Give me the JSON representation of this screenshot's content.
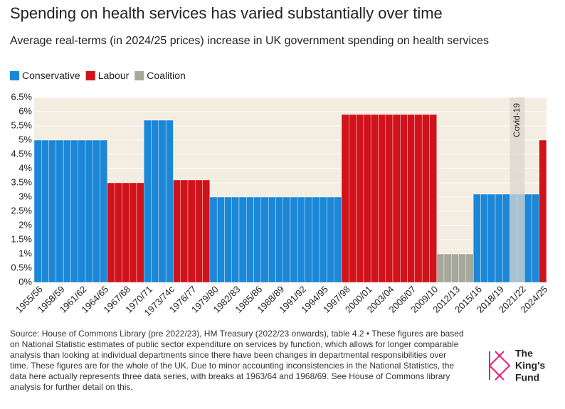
{
  "chart_data": {
    "type": "bar",
    "title": "Spending on health services has varied substantially over time",
    "subtitle": "Average real-terms (in 2024/25 prices) increase in UK government spending on health services",
    "categories": [
      "1955/56",
      null,
      null,
      "1958/59",
      null,
      null,
      "1961/62",
      null,
      null,
      "1964/65",
      null,
      null,
      "1967/68",
      null,
      null,
      "1970/71",
      null,
      null,
      "1973/74c",
      null,
      null,
      "1976/77",
      null,
      null,
      "1979/80",
      null,
      null,
      "1982/83",
      null,
      null,
      "1985/86",
      null,
      null,
      "1988/89",
      null,
      null,
      "1991/92",
      null,
      null,
      "1994/95",
      null,
      null,
      "1997/98",
      null,
      null,
      "2000/01",
      null,
      null,
      "2003/04",
      null,
      null,
      "2006/07",
      null,
      null,
      "2009/10",
      null,
      null,
      "2012/13",
      null,
      null,
      "2015/16",
      null,
      null,
      "2018/19",
      null,
      null,
      "2021/22",
      null,
      null,
      "2024/25"
    ],
    "series": [
      {
        "name": "Conservative",
        "color": "#1b87d6",
        "values": [
          5,
          5,
          5,
          5,
          5,
          5,
          5,
          5,
          5,
          5,
          null,
          null,
          null,
          null,
          null,
          5.7,
          5.7,
          5.7,
          5.7,
          null,
          null,
          null,
          null,
          null,
          3,
          3,
          3,
          3,
          3,
          3,
          3,
          3,
          3,
          3,
          3,
          3,
          3,
          3,
          3,
          3,
          3,
          3,
          null,
          null,
          null,
          null,
          null,
          null,
          null,
          null,
          null,
          null,
          null,
          null,
          null,
          null,
          null,
          null,
          null,
          null,
          3.1,
          3.1,
          3.1,
          3.1,
          3.1,
          3.1,
          3.1,
          3.1,
          3.1,
          null
        ]
      },
      {
        "name": "Labour",
        "color": "#d0121b",
        "values": [
          null,
          null,
          null,
          null,
          null,
          null,
          null,
          null,
          null,
          null,
          3.5,
          3.5,
          3.5,
          3.5,
          3.5,
          null,
          null,
          null,
          null,
          3.6,
          3.6,
          3.6,
          3.6,
          3.6,
          null,
          null,
          null,
          null,
          null,
          null,
          null,
          null,
          null,
          null,
          null,
          null,
          null,
          null,
          null,
          null,
          null,
          null,
          5.9,
          5.9,
          5.9,
          5.9,
          5.9,
          5.9,
          5.9,
          5.9,
          5.9,
          5.9,
          5.9,
          5.9,
          5.9,
          null,
          null,
          null,
          null,
          null,
          null,
          null,
          null,
          null,
          null,
          null,
          null,
          null,
          null,
          5
        ]
      },
      {
        "name": "Coalition",
        "color": "#a6a89c",
        "values": [
          null,
          null,
          null,
          null,
          null,
          null,
          null,
          null,
          null,
          null,
          null,
          null,
          null,
          null,
          null,
          null,
          null,
          null,
          null,
          null,
          null,
          null,
          null,
          null,
          null,
          null,
          null,
          null,
          null,
          null,
          null,
          null,
          null,
          null,
          null,
          null,
          null,
          null,
          null,
          null,
          null,
          null,
          null,
          null,
          null,
          null,
          null,
          null,
          null,
          null,
          null,
          null,
          null,
          null,
          null,
          1,
          1,
          1,
          1,
          1,
          null,
          null,
          null,
          null,
          null,
          null,
          null,
          null,
          null,
          null
        ]
      }
    ],
    "ylim": [
      0,
      6.5
    ],
    "yticks": [
      {
        "value": 0,
        "label": "0%"
      },
      {
        "value": 0.5,
        "label": "0.5%"
      },
      {
        "value": 1,
        "label": "1%"
      },
      {
        "value": 1.5,
        "label": "1.5%"
      },
      {
        "value": 2,
        "label": "2%"
      },
      {
        "value": 2.5,
        "label": "2.5%"
      },
      {
        "value": 3,
        "label": "3%"
      },
      {
        "value": 3.5,
        "label": "3.5%"
      },
      {
        "value": 4,
        "label": "4%"
      },
      {
        "value": 4.5,
        "label": "4.5%"
      },
      {
        "value": 5,
        "label": "5%"
      },
      {
        "value": 5.5,
        "label": "5.5%"
      },
      {
        "value": 6,
        "label": "6%"
      },
      {
        "value": 6.5,
        "label": "6.5%"
      }
    ],
    "grid": true,
    "annotation": "Covid-19",
    "source": "Source: House of Commons Library (pre 2022/23), HM Treasury (2022/23 onwards), table 4.2 • These figures are based on National Statistic estimates of public sector expenditure on services by function, which allows for longer comparable analysis than looking at individual departments since there have been changes in departmental responsibilities over time. These figures are for the whole of the UK. Due to minor accounting inconsistencies in the National Statistics, the data here actually represents three data series, with breaks at 1963/64 and 1968/69. See House of Commons library analysis for further detail on this."
  },
  "logo": {
    "lines": [
      "The",
      "King's",
      "Fund"
    ]
  }
}
